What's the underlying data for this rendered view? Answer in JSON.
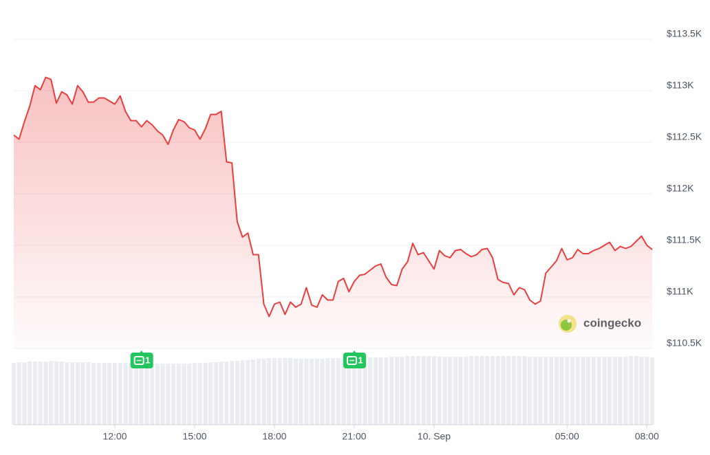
{
  "chart_data": {
    "type": "line",
    "color": "#ea3d3d",
    "x": [
      8.2,
      8.4,
      8.6,
      8.8,
      9,
      9.2,
      9.4,
      9.6,
      9.8,
      10,
      10.2,
      10.4,
      10.6,
      10.8,
      11,
      11.2,
      11.4,
      11.6,
      11.8,
      12,
      12.2,
      12.4,
      12.6,
      12.8,
      13,
      13.2,
      13.4,
      13.6,
      13.8,
      14,
      14.2,
      14.4,
      14.6,
      14.8,
      15,
      15.2,
      15.4,
      15.6,
      15.8,
      16,
      16.2,
      16.4,
      16.6,
      16.8,
      17,
      17.2,
      17.4,
      17.6,
      17.8,
      18,
      18.2,
      18.4,
      18.6,
      18.8,
      19,
      19.2,
      19.4,
      19.6,
      19.8,
      20,
      20.2,
      20.4,
      20.6,
      20.8,
      21,
      21.2,
      21.4,
      21.6,
      21.8,
      22,
      22.2,
      22.4,
      22.6,
      22.8,
      23,
      23.2,
      23.4,
      23.6,
      23.8,
      24,
      24.2,
      24.4,
      24.6,
      24.8,
      25,
      25.2,
      25.4,
      25.6,
      25.8,
      26,
      26.2,
      26.4,
      26.6,
      26.8,
      27,
      27.2,
      27.4,
      27.6,
      27.8,
      28,
      28.2,
      28.4,
      28.6,
      28.8,
      29,
      29.2,
      29.4,
      29.6,
      29.8,
      30,
      30.2,
      30.4,
      30.6,
      30.8,
      31,
      31.2,
      31.4,
      31.6,
      31.8,
      32,
      32.2
    ],
    "values": [
      112570,
      112530,
      112700,
      112850,
      113050,
      113010,
      113130,
      113110,
      112880,
      112990,
      112960,
      112870,
      113050,
      112990,
      112890,
      112890,
      112930,
      112930,
      112900,
      112870,
      112950,
      112800,
      112710,
      112710,
      112650,
      112710,
      112670,
      112610,
      112570,
      112480,
      112620,
      112720,
      112700,
      112640,
      112620,
      112530,
      112630,
      112770,
      112770,
      112800,
      112310,
      112300,
      111730,
      111580,
      111620,
      111410,
      111410,
      110930,
      110810,
      110930,
      110950,
      110830,
      110950,
      110900,
      110930,
      111090,
      110920,
      110900,
      111020,
      110970,
      110970,
      111150,
      111180,
      111050,
      111150,
      111210,
      111220,
      111260,
      111300,
      111320,
      111190,
      111120,
      111110,
      111270,
      111340,
      111520,
      111410,
      111430,
      111350,
      111270,
      111450,
      111400,
      111380,
      111450,
      111460,
      111420,
      111390,
      111410,
      111460,
      111470,
      111380,
      111170,
      111140,
      111130,
      111020,
      111090,
      111070,
      110970,
      110930,
      110960,
      111230,
      111290,
      111350,
      111470,
      111360,
      111380,
      111460,
      111420,
      111420,
      111450,
      111470,
      111500,
      111530,
      111450,
      111490,
      111470,
      111490,
      111540,
      111590,
      111500,
      111460
    ],
    "xlim": [
      8.2,
      32.2
    ],
    "xticks": [
      {
        "value": 12,
        "label": "12:00"
      },
      {
        "value": 15,
        "label": "15:00"
      },
      {
        "value": 18,
        "label": "18:00"
      },
      {
        "value": 21,
        "label": "21:00"
      },
      {
        "value": 24,
        "label": "10. Sep"
      },
      {
        "value": 29,
        "label": "05:00"
      },
      {
        "value": 32,
        "label": "08:00"
      }
    ],
    "ylim": [
      110500,
      113500
    ],
    "yticks": [
      {
        "value": 110500,
        "label": "$110.5K"
      },
      {
        "value": 111000,
        "label": "$111K"
      },
      {
        "value": 111500,
        "label": "$111.5K"
      },
      {
        "value": 112000,
        "label": "$112K"
      },
      {
        "value": 112500,
        "label": "$112.5K"
      },
      {
        "value": 113000,
        "label": "$113K"
      },
      {
        "value": 113500,
        "label": "$113.5K"
      }
    ],
    "grid": true,
    "volume": {
      "color": "#e9ecf0",
      "ylim": [
        0,
        100
      ],
      "values": [
        90,
        91,
        91,
        92,
        92,
        92,
        92,
        93,
        92,
        92,
        91,
        91,
        91,
        91,
        91,
        90,
        90,
        90,
        90,
        90,
        90,
        90,
        90,
        90,
        90,
        89,
        89,
        89,
        89,
        89,
        89,
        89,
        89,
        89,
        90,
        90,
        90,
        91,
        91,
        92,
        92,
        93,
        93,
        94,
        94,
        95,
        96,
        96,
        97,
        97,
        97,
        97,
        97,
        96,
        96,
        96,
        96,
        96,
        96,
        97,
        97,
        97,
        97,
        97,
        97,
        98,
        98,
        98,
        98,
        98,
        98,
        99,
        99,
        99,
        100,
        100,
        100,
        100,
        100,
        100,
        99,
        99,
        99,
        99,
        99,
        99,
        100,
        100,
        100,
        100,
        100,
        100,
        100,
        100,
        100,
        100,
        100,
        99,
        99,
        99,
        99,
        99,
        99,
        99,
        99,
        99,
        99,
        99,
        99,
        99,
        99,
        99,
        99,
        99,
        99,
        99,
        100,
        100,
        99,
        99,
        98
      ]
    },
    "news": [
      {
        "x": 13,
        "count": 1
      },
      {
        "x": 21,
        "count": 1
      }
    ],
    "watermark": "coingecko"
  }
}
